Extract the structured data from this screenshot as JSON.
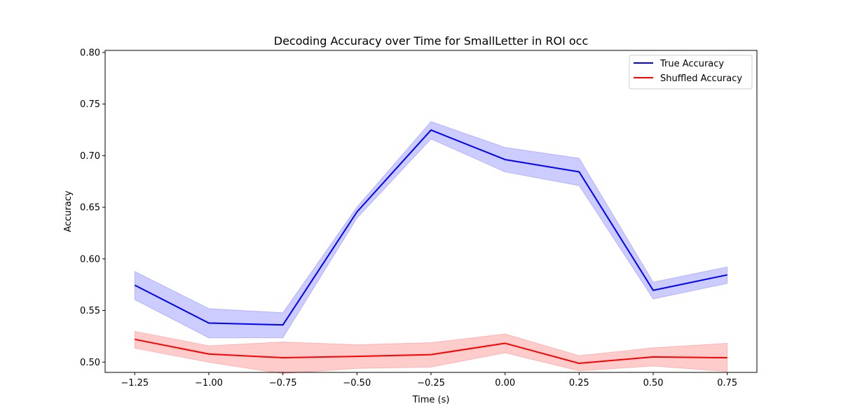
{
  "chart_data": {
    "type": "line",
    "title": "Decoding Accuracy over Time for SmallLetter in ROI occ",
    "xlabel": "Time (s)",
    "ylabel": "Accuracy",
    "x": [
      -1.25,
      -1.0,
      -0.75,
      -0.5,
      -0.25,
      0.0,
      0.25,
      0.5,
      0.75
    ],
    "xlim": [
      -1.35,
      0.85
    ],
    "ylim": [
      0.49,
      0.802
    ],
    "xticks": [
      -1.25,
      -1.0,
      -0.75,
      -0.5,
      -0.25,
      0.0,
      0.25,
      0.5,
      0.75
    ],
    "xtick_labels": [
      "−1.25",
      "−1.00",
      "−0.75",
      "−0.50",
      "−0.25",
      "0.00",
      "0.25",
      "0.50",
      "0.75"
    ],
    "yticks": [
      0.5,
      0.55,
      0.6,
      0.65,
      0.7,
      0.75,
      0.8
    ],
    "ytick_labels": [
      "0.50",
      "0.55",
      "0.60",
      "0.65",
      "0.70",
      "0.75",
      "0.80"
    ],
    "grid": false,
    "legend_position": "top-right",
    "series": [
      {
        "name": "True Accuracy",
        "color": "#0000ff",
        "band_color": "#0000ff",
        "values": [
          0.5745,
          0.5378,
          0.536,
          0.6455,
          0.7248,
          0.6962,
          0.6843,
          0.5695,
          0.5845
        ],
        "lower": [
          0.5605,
          0.5235,
          0.5235,
          0.6395,
          0.7162,
          0.6842,
          0.671,
          0.5612,
          0.5762
        ],
        "upper": [
          0.5878,
          0.5518,
          0.5478,
          0.6502,
          0.733,
          0.708,
          0.6975,
          0.5775,
          0.5922
        ]
      },
      {
        "name": "Shuffled Accuracy",
        "color": "#ff0000",
        "band_color": "#ff0000",
        "values": [
          0.522,
          0.5078,
          0.5042,
          0.5055,
          0.5072,
          0.5182,
          0.4988,
          0.505,
          0.5042
        ],
        "lower": [
          0.5135,
          0.4998,
          0.4888,
          0.4938,
          0.4952,
          0.509,
          0.4915,
          0.4962,
          0.4908
        ],
        "upper": [
          0.5298,
          0.5158,
          0.5195,
          0.5168,
          0.5188,
          0.5272,
          0.5062,
          0.5138,
          0.5182
        ]
      }
    ]
  }
}
